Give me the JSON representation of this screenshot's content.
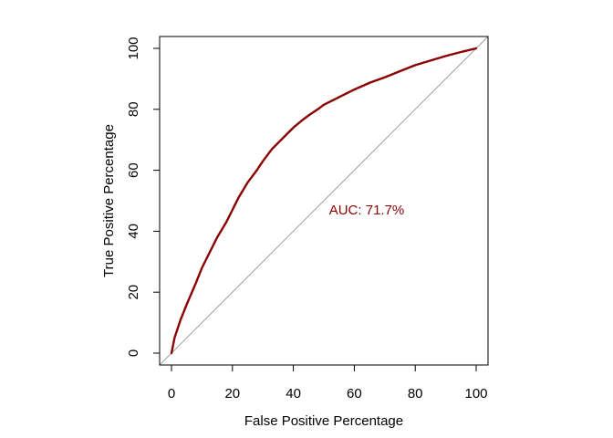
{
  "chart_data": {
    "type": "line",
    "xlabel": "False Positive Percentage",
    "ylabel": "True Positive Percentage",
    "xlim": [
      0,
      100
    ],
    "ylim": [
      0,
      100
    ],
    "x_ticks": [
      0,
      20,
      40,
      60,
      80,
      100
    ],
    "y_ticks": [
      0,
      20,
      40,
      60,
      80,
      100
    ],
    "grid": false,
    "legend": "none",
    "annotation": {
      "text": "AUC: 71.7%",
      "x": 50,
      "y": 47,
      "color": "#8b0000"
    },
    "series": [
      {
        "color": "#8b0000",
        "x": [
          0,
          1,
          3,
          5,
          8,
          10,
          12,
          15,
          18,
          20,
          22,
          25,
          28,
          30,
          33,
          35,
          38,
          40,
          43,
          45,
          48,
          50,
          53,
          55,
          58,
          60,
          63,
          65,
          70,
          75,
          80,
          85,
          90,
          95,
          100
        ],
        "y": [
          0,
          5,
          11,
          16,
          23,
          28,
          32,
          38,
          43,
          47,
          51,
          56,
          60,
          63,
          67,
          69,
          72,
          74,
          76.5,
          78,
          80,
          81.5,
          83,
          84,
          85.5,
          86.5,
          87.8,
          88.7,
          90.5,
          92.5,
          94.5,
          96,
          97.5,
          98.8,
          100
        ]
      },
      {
        "name": "reference",
        "color": "#a0a0a0",
        "x": [
          -5,
          105
        ],
        "y": [
          -5,
          105
        ]
      }
    ]
  }
}
